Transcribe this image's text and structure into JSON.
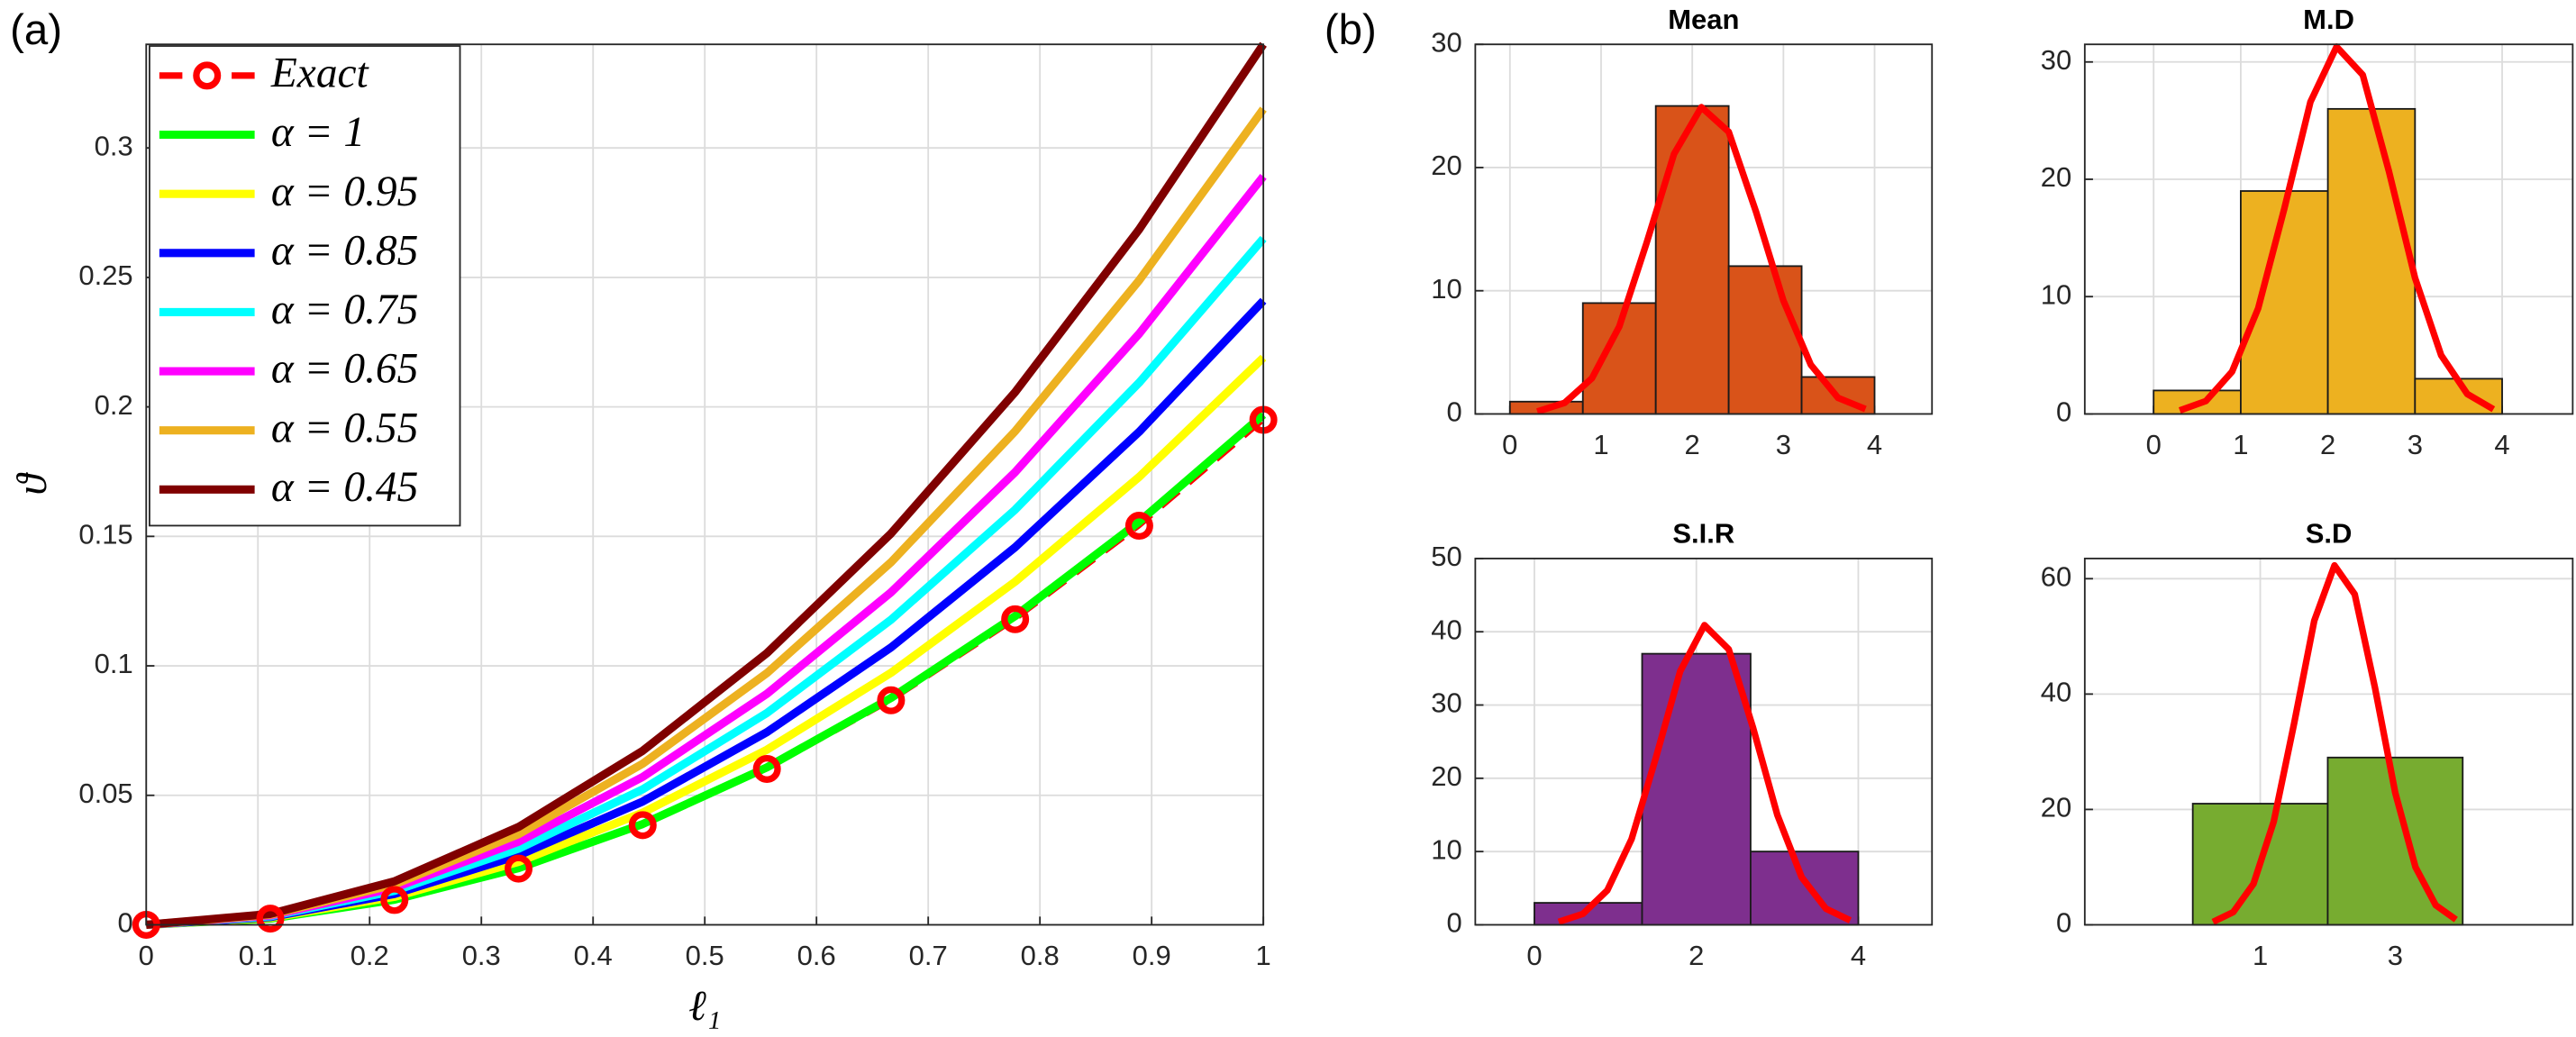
{
  "chart_data": [
    {
      "type": "line",
      "panel_label": "(a)",
      "xlabel": "ℓ₁",
      "ylabel": "ϑ",
      "x": [
        0,
        0.1111,
        0.2222,
        0.3333,
        0.4444,
        0.5556,
        0.6667,
        0.7778,
        0.8889,
        1
      ],
      "xlim": [
        0,
        1
      ],
      "xticks": [
        0,
        0.1,
        0.2,
        0.3,
        0.4,
        0.5,
        0.6,
        0.7,
        0.8,
        0.9,
        1
      ],
      "ylim": [
        0,
        0.34
      ],
      "yticks": [
        0,
        0.05,
        0.1,
        0.15,
        0.2,
        0.25,
        0.3
      ],
      "grid": true,
      "legend": "upper left",
      "series": [
        {
          "name": "Exact",
          "color": "#ff0000",
          "dashed": true,
          "markers": true,
          "values": [
            0,
            0.0024,
            0.0096,
            0.0217,
            0.0385,
            0.0602,
            0.0867,
            0.118,
            0.1541,
            0.195
          ]
        },
        {
          "name": "α = 1",
          "color": "#00ff00",
          "values": [
            0,
            0.0024,
            0.0097,
            0.0219,
            0.0389,
            0.0608,
            0.0876,
            0.1192,
            0.1557,
            0.197
          ]
        },
        {
          "name": "α = 0.95",
          "color": "#ffff00",
          "values": [
            0,
            0.0027,
            0.0108,
            0.0243,
            0.0433,
            0.0676,
            0.0973,
            0.1325,
            0.173,
            0.219
          ]
        },
        {
          "name": "α = 0.85",
          "color": "#0000ff",
          "values": [
            0,
            0.003,
            0.0119,
            0.0268,
            0.0476,
            0.0744,
            0.1071,
            0.1458,
            0.1904,
            0.241
          ]
        },
        {
          "name": "α = 0.75",
          "color": "#00ffff",
          "values": [
            0,
            0.0033,
            0.0131,
            0.0294,
            0.0523,
            0.0818,
            0.1178,
            0.1603,
            0.2094,
            0.265
          ]
        },
        {
          "name": "α = 0.65",
          "color": "#ff00ff",
          "values": [
            0,
            0.0036,
            0.0143,
            0.0321,
            0.0571,
            0.0892,
            0.1284,
            0.1748,
            0.2283,
            0.289
          ]
        },
        {
          "name": "α = 0.55",
          "color": "#edb120",
          "values": [
            0,
            0.0039,
            0.0156,
            0.035,
            0.0622,
            0.0972,
            0.14,
            0.1906,
            0.2489,
            0.315
          ]
        },
        {
          "name": "α = 0.45",
          "color": "#800000",
          "values": [
            0,
            0.0042,
            0.0168,
            0.0378,
            0.0672,
            0.1049,
            0.1511,
            0.2057,
            0.2686,
            0.34
          ]
        }
      ]
    },
    {
      "type": "histogram",
      "panel_label": "(b)",
      "title": "Mean",
      "color": "#d95319",
      "bins": [
        0,
        0.8,
        1.6,
        2.4,
        3.2,
        4
      ],
      "values": [
        1,
        9,
        25,
        12,
        3
      ],
      "xlim": [
        -0.38,
        4.63
      ],
      "xticks": [
        0,
        1,
        2,
        3,
        4
      ],
      "ylim": [
        0,
        30
      ],
      "yticks": [
        0,
        10,
        20,
        30
      ],
      "grid": true,
      "fit": {
        "color": "#ff0000",
        "x": [
          0.3,
          0.6,
          0.9,
          1.2,
          1.5,
          1.8,
          2.1,
          2.4,
          2.7,
          3.0,
          3.3,
          3.6,
          3.9
        ],
        "y": [
          0.2,
          0.9,
          2.9,
          7.1,
          13.9,
          21.1,
          24.9,
          22.9,
          16.4,
          9.2,
          4,
          1.3,
          0.4
        ]
      }
    },
    {
      "type": "histogram",
      "title": "M.D",
      "color": "#edb120",
      "bins": [
        0,
        1,
        2,
        3,
        4
      ],
      "values": [
        2,
        19,
        26,
        3
      ],
      "xlim": [
        -0.79,
        4.81
      ],
      "xticks": [
        0,
        1,
        2,
        3,
        4
      ],
      "ylim": [
        0,
        31.5
      ],
      "yticks": [
        0,
        10,
        20,
        30
      ],
      "grid": true,
      "fit": {
        "color": "#ff0000",
        "x": [
          0.3,
          0.6,
          0.9,
          1.2,
          1.5,
          1.8,
          2.1,
          2.4,
          2.7,
          3.0,
          3.3,
          3.6,
          3.9
        ],
        "y": [
          0.3,
          1.1,
          3.6,
          9,
          17.5,
          26.6,
          31.3,
          28.9,
          20.7,
          11.6,
          5,
          1.7,
          0.4
        ]
      }
    },
    {
      "type": "histogram",
      "title": "S.I.R",
      "color": "#7e2f8e",
      "bins": [
        0,
        1.33,
        2.67,
        4
      ],
      "values": [
        3,
        37,
        10
      ],
      "xlim": [
        -0.73,
        4.91
      ],
      "xticks": [
        0,
        2,
        4
      ],
      "ylim": [
        0,
        50
      ],
      "yticks": [
        0,
        10,
        20,
        30,
        40,
        50
      ],
      "grid": true,
      "fit": {
        "color": "#ff0000",
        "x": [
          0.3,
          0.6,
          0.9,
          1.2,
          1.5,
          1.8,
          2.1,
          2.4,
          2.7,
          3.0,
          3.3,
          3.6,
          3.9
        ],
        "y": [
          0.4,
          1.5,
          4.7,
          11.7,
          22.8,
          34.6,
          40.9,
          37.6,
          26.9,
          15,
          6.5,
          2.2,
          0.6
        ]
      }
    },
    {
      "type": "histogram",
      "title": "S.D",
      "color": "#77ac30",
      "bins": [
        0,
        2,
        4
      ],
      "values": [
        21,
        29
      ],
      "xlim": [
        -1.6,
        5.63
      ],
      "xticks": [
        1,
        3
      ],
      "ylim": [
        0,
        63.5
      ],
      "yticks": [
        0,
        20,
        40,
        60
      ],
      "grid": true,
      "fit": {
        "color": "#ff0000",
        "x": [
          0.3,
          0.6,
          0.9,
          1.2,
          1.5,
          1.8,
          2.1,
          2.4,
          2.7,
          3.0,
          3.3,
          3.6,
          3.9
        ],
        "y": [
          0.5,
          2.2,
          7.1,
          17.9,
          34.8,
          52.7,
          62.3,
          57.3,
          41.1,
          22.9,
          10,
          3.4,
          0.9
        ]
      }
    }
  ]
}
